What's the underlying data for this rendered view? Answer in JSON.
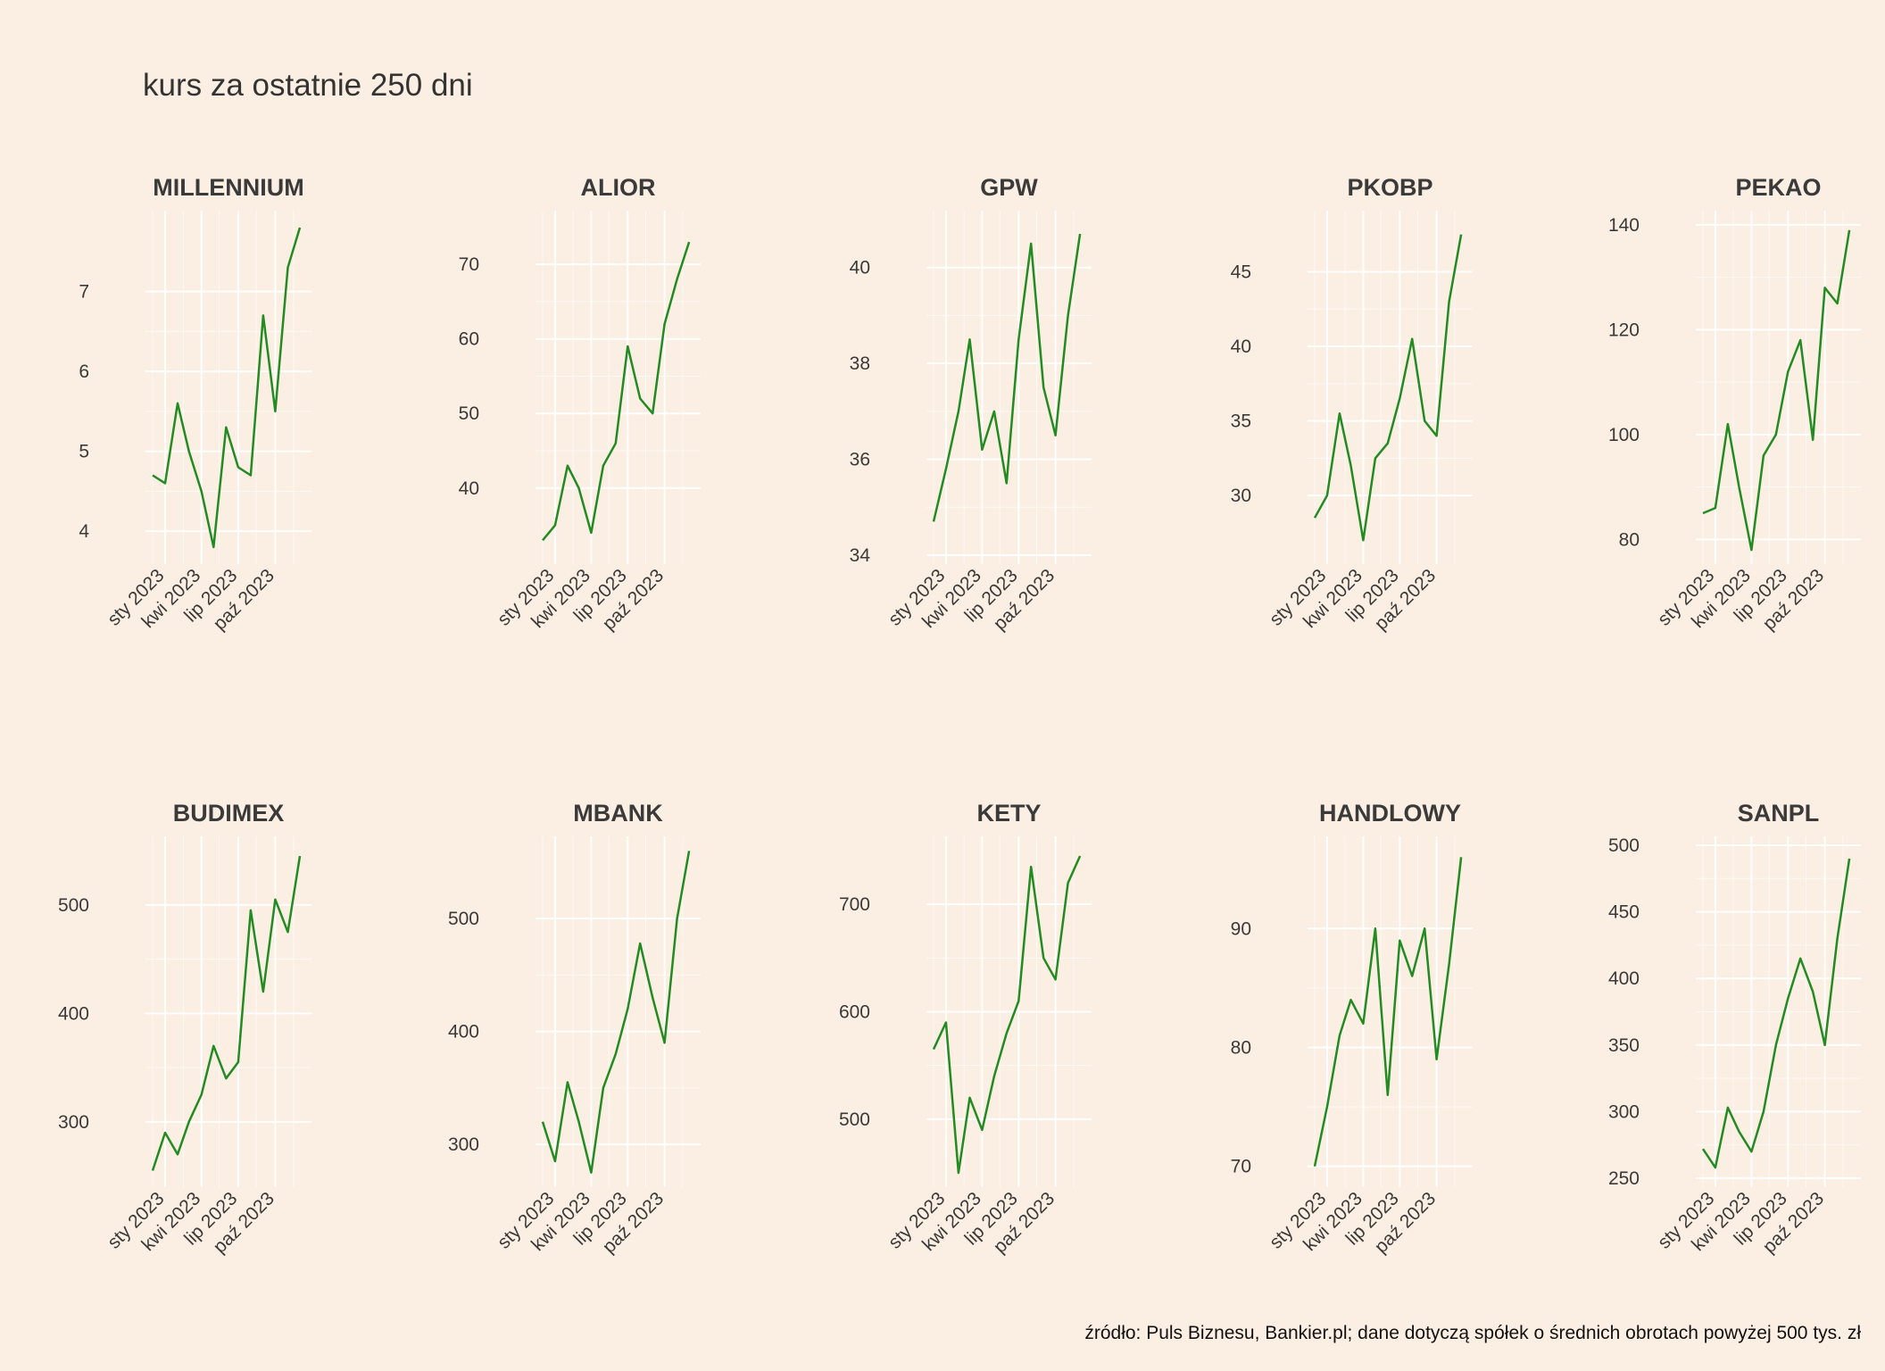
{
  "title": "kurs za ostatnie 250 dni",
  "caption": "źródło: Puls Biznesu, Bankier.pl; dane dotyczą spółek o średnich obrotach powyżej 500 tys. zł",
  "colors": {
    "background": "#FBEEE2",
    "grid": "#FFFFFF",
    "line": "#228B22",
    "text": "#3A3A3A"
  },
  "chart_data": [
    {
      "type": "line",
      "title": "MILLENNIUM",
      "x_ticks": [
        "sty 2023",
        "kwi 2023",
        "lip 2023",
        "paź 2023"
      ],
      "x": [
        "2022-12",
        "2023-01",
        "2023-02",
        "2023-03",
        "2023-04",
        "2023-05",
        "2023-06",
        "2023-07",
        "2023-08",
        "2023-09",
        "2023-10",
        "2023-11",
        "2023-12"
      ],
      "ylim": [
        3.7,
        7.9
      ],
      "y_ticks": [
        4,
        5,
        6,
        7
      ],
      "series": [
        {
          "values": [
            4.7,
            4.6,
            5.6,
            5.0,
            4.5,
            3.8,
            5.3,
            4.8,
            4.7,
            6.7,
            5.5,
            7.3,
            7.8
          ]
        }
      ]
    },
    {
      "type": "line",
      "title": "ALIOR",
      "x_ticks": [
        "sty 2023",
        "kwi 2023",
        "lip 2023",
        "paź 2023"
      ],
      "x": [
        "2022-12",
        "2023-01",
        "2023-02",
        "2023-03",
        "2023-04",
        "2023-05",
        "2023-06",
        "2023-07",
        "2023-08",
        "2023-09",
        "2023-10",
        "2023-11",
        "2023-12"
      ],
      "ylim": [
        31,
        76
      ],
      "y_ticks": [
        40,
        50,
        60,
        70
      ],
      "series": [
        {
          "values": [
            33,
            35,
            43,
            40,
            34,
            43,
            46,
            59,
            52,
            50,
            62,
            68,
            73
          ]
        }
      ]
    },
    {
      "type": "line",
      "title": "GPW",
      "x_ticks": [
        "sty 2023",
        "kwi 2023",
        "lip 2023",
        "paź 2023"
      ],
      "x": [
        "2022-12",
        "2023-01",
        "2023-02",
        "2023-03",
        "2023-04",
        "2023-05",
        "2023-06",
        "2023-07",
        "2023-08",
        "2023-09",
        "2023-10",
        "2023-11",
        "2023-12"
      ],
      "ylim": [
        34,
        41
      ],
      "y_ticks": [
        34,
        36,
        38,
        40
      ],
      "series": [
        {
          "values": [
            34.7,
            35.8,
            37.0,
            38.5,
            36.2,
            37.0,
            35.5,
            38.5,
            40.5,
            37.5,
            36.5,
            39.0,
            40.7
          ]
        }
      ]
    },
    {
      "type": "line",
      "title": "PKOBP",
      "x_ticks": [
        "sty 2023",
        "kwi 2023",
        "lip 2023",
        "paź 2023"
      ],
      "x": [
        "2022-12",
        "2023-01",
        "2023-02",
        "2023-03",
        "2023-04",
        "2023-05",
        "2023-06",
        "2023-07",
        "2023-08",
        "2023-09",
        "2023-10",
        "2023-11",
        "2023-12"
      ],
      "ylim": [
        26,
        48.5
      ],
      "y_ticks": [
        30,
        35,
        40,
        45
      ],
      "series": [
        {
          "values": [
            28.5,
            30.0,
            35.5,
            32.0,
            27.0,
            32.5,
            33.5,
            36.5,
            40.5,
            35.0,
            34.0,
            43.0,
            47.5
          ]
        }
      ]
    },
    {
      "type": "line",
      "title": "PEKAO",
      "x_ticks": [
        "sty 2023",
        "kwi 2023",
        "lip 2023",
        "paź 2023"
      ],
      "x": [
        "2022-12",
        "2023-01",
        "2023-02",
        "2023-03",
        "2023-04",
        "2023-05",
        "2023-06",
        "2023-07",
        "2023-08",
        "2023-09",
        "2023-10",
        "2023-11",
        "2023-12"
      ],
      "ylim": [
        77,
        141
      ],
      "y_ticks": [
        80,
        100,
        120,
        140
      ],
      "series": [
        {
          "values": [
            85,
            86,
            102,
            90,
            78,
            96,
            100,
            112,
            118,
            99,
            128,
            125,
            139
          ]
        }
      ]
    },
    {
      "type": "line",
      "title": "BUDIMEX",
      "x_ticks": [
        "sty 2023",
        "kwi 2023",
        "lip 2023",
        "paź 2023"
      ],
      "x": [
        "2022-12",
        "2023-01",
        "2023-02",
        "2023-03",
        "2023-04",
        "2023-05",
        "2023-06",
        "2023-07",
        "2023-08",
        "2023-09",
        "2023-10",
        "2023-11",
        "2023-12"
      ],
      "ylim": [
        248,
        555
      ],
      "y_ticks": [
        300,
        400,
        500
      ],
      "series": [
        {
          "values": [
            255,
            290,
            270,
            300,
            325,
            370,
            340,
            355,
            495,
            420,
            505,
            475,
            545
          ]
        }
      ]
    },
    {
      "type": "line",
      "title": "MBANK",
      "x_ticks": [
        "sty 2023",
        "kwi 2023",
        "lip 2023",
        "paź 2023"
      ],
      "x": [
        "2022-12",
        "2023-01",
        "2023-02",
        "2023-03",
        "2023-04",
        "2023-05",
        "2023-06",
        "2023-07",
        "2023-08",
        "2023-09",
        "2023-10",
        "2023-11",
        "2023-12"
      ],
      "ylim": [
        270,
        565
      ],
      "y_ticks": [
        300,
        400,
        500
      ],
      "series": [
        {
          "values": [
            320,
            285,
            355,
            320,
            275,
            350,
            380,
            420,
            478,
            430,
            390,
            500,
            560
          ]
        }
      ]
    },
    {
      "type": "line",
      "title": "KETY",
      "x_ticks": [
        "sty 2023",
        "kwi 2023",
        "lip 2023",
        "paź 2023"
      ],
      "x": [
        "2022-12",
        "2023-01",
        "2023-02",
        "2023-03",
        "2023-04",
        "2023-05",
        "2023-06",
        "2023-07",
        "2023-08",
        "2023-09",
        "2023-10",
        "2023-11",
        "2023-12"
      ],
      "ylim": [
        445,
        755
      ],
      "y_ticks": [
        500,
        600,
        700
      ],
      "series": [
        {
          "values": [
            565,
            590,
            450,
            520,
            490,
            540,
            580,
            610,
            735,
            650,
            630,
            720,
            745
          ]
        }
      ]
    },
    {
      "type": "line",
      "title": "HANDLOWY",
      "x_ticks": [
        "sty 2023",
        "kwi 2023",
        "lip 2023",
        "paź 2023"
      ],
      "x": [
        "2022-12",
        "2023-01",
        "2023-02",
        "2023-03",
        "2023-04",
        "2023-05",
        "2023-06",
        "2023-07",
        "2023-08",
        "2023-09",
        "2023-10",
        "2023-11",
        "2023-12"
      ],
      "ylim": [
        69,
        97
      ],
      "y_ticks": [
        70,
        80,
        90
      ],
      "series": [
        {
          "values": [
            70,
            75,
            81,
            84,
            82,
            90,
            76,
            89,
            86,
            90,
            79,
            87,
            96
          ]
        }
      ]
    },
    {
      "type": "line",
      "title": "SANPL",
      "x_ticks": [
        "sty 2023",
        "kwi 2023",
        "lip 2023",
        "paź 2023"
      ],
      "x": [
        "2022-12",
        "2023-01",
        "2023-02",
        "2023-03",
        "2023-04",
        "2023-05",
        "2023-06",
        "2023-07",
        "2023-08",
        "2023-09",
        "2023-10",
        "2023-11",
        "2023-12"
      ],
      "ylim": [
        250,
        500
      ],
      "y_ticks": [
        250,
        300,
        350,
        400,
        450,
        500
      ],
      "series": [
        {
          "values": [
            272,
            258,
            303,
            285,
            270,
            300,
            350,
            385,
            415,
            390,
            350,
            430,
            490
          ]
        }
      ]
    }
  ]
}
